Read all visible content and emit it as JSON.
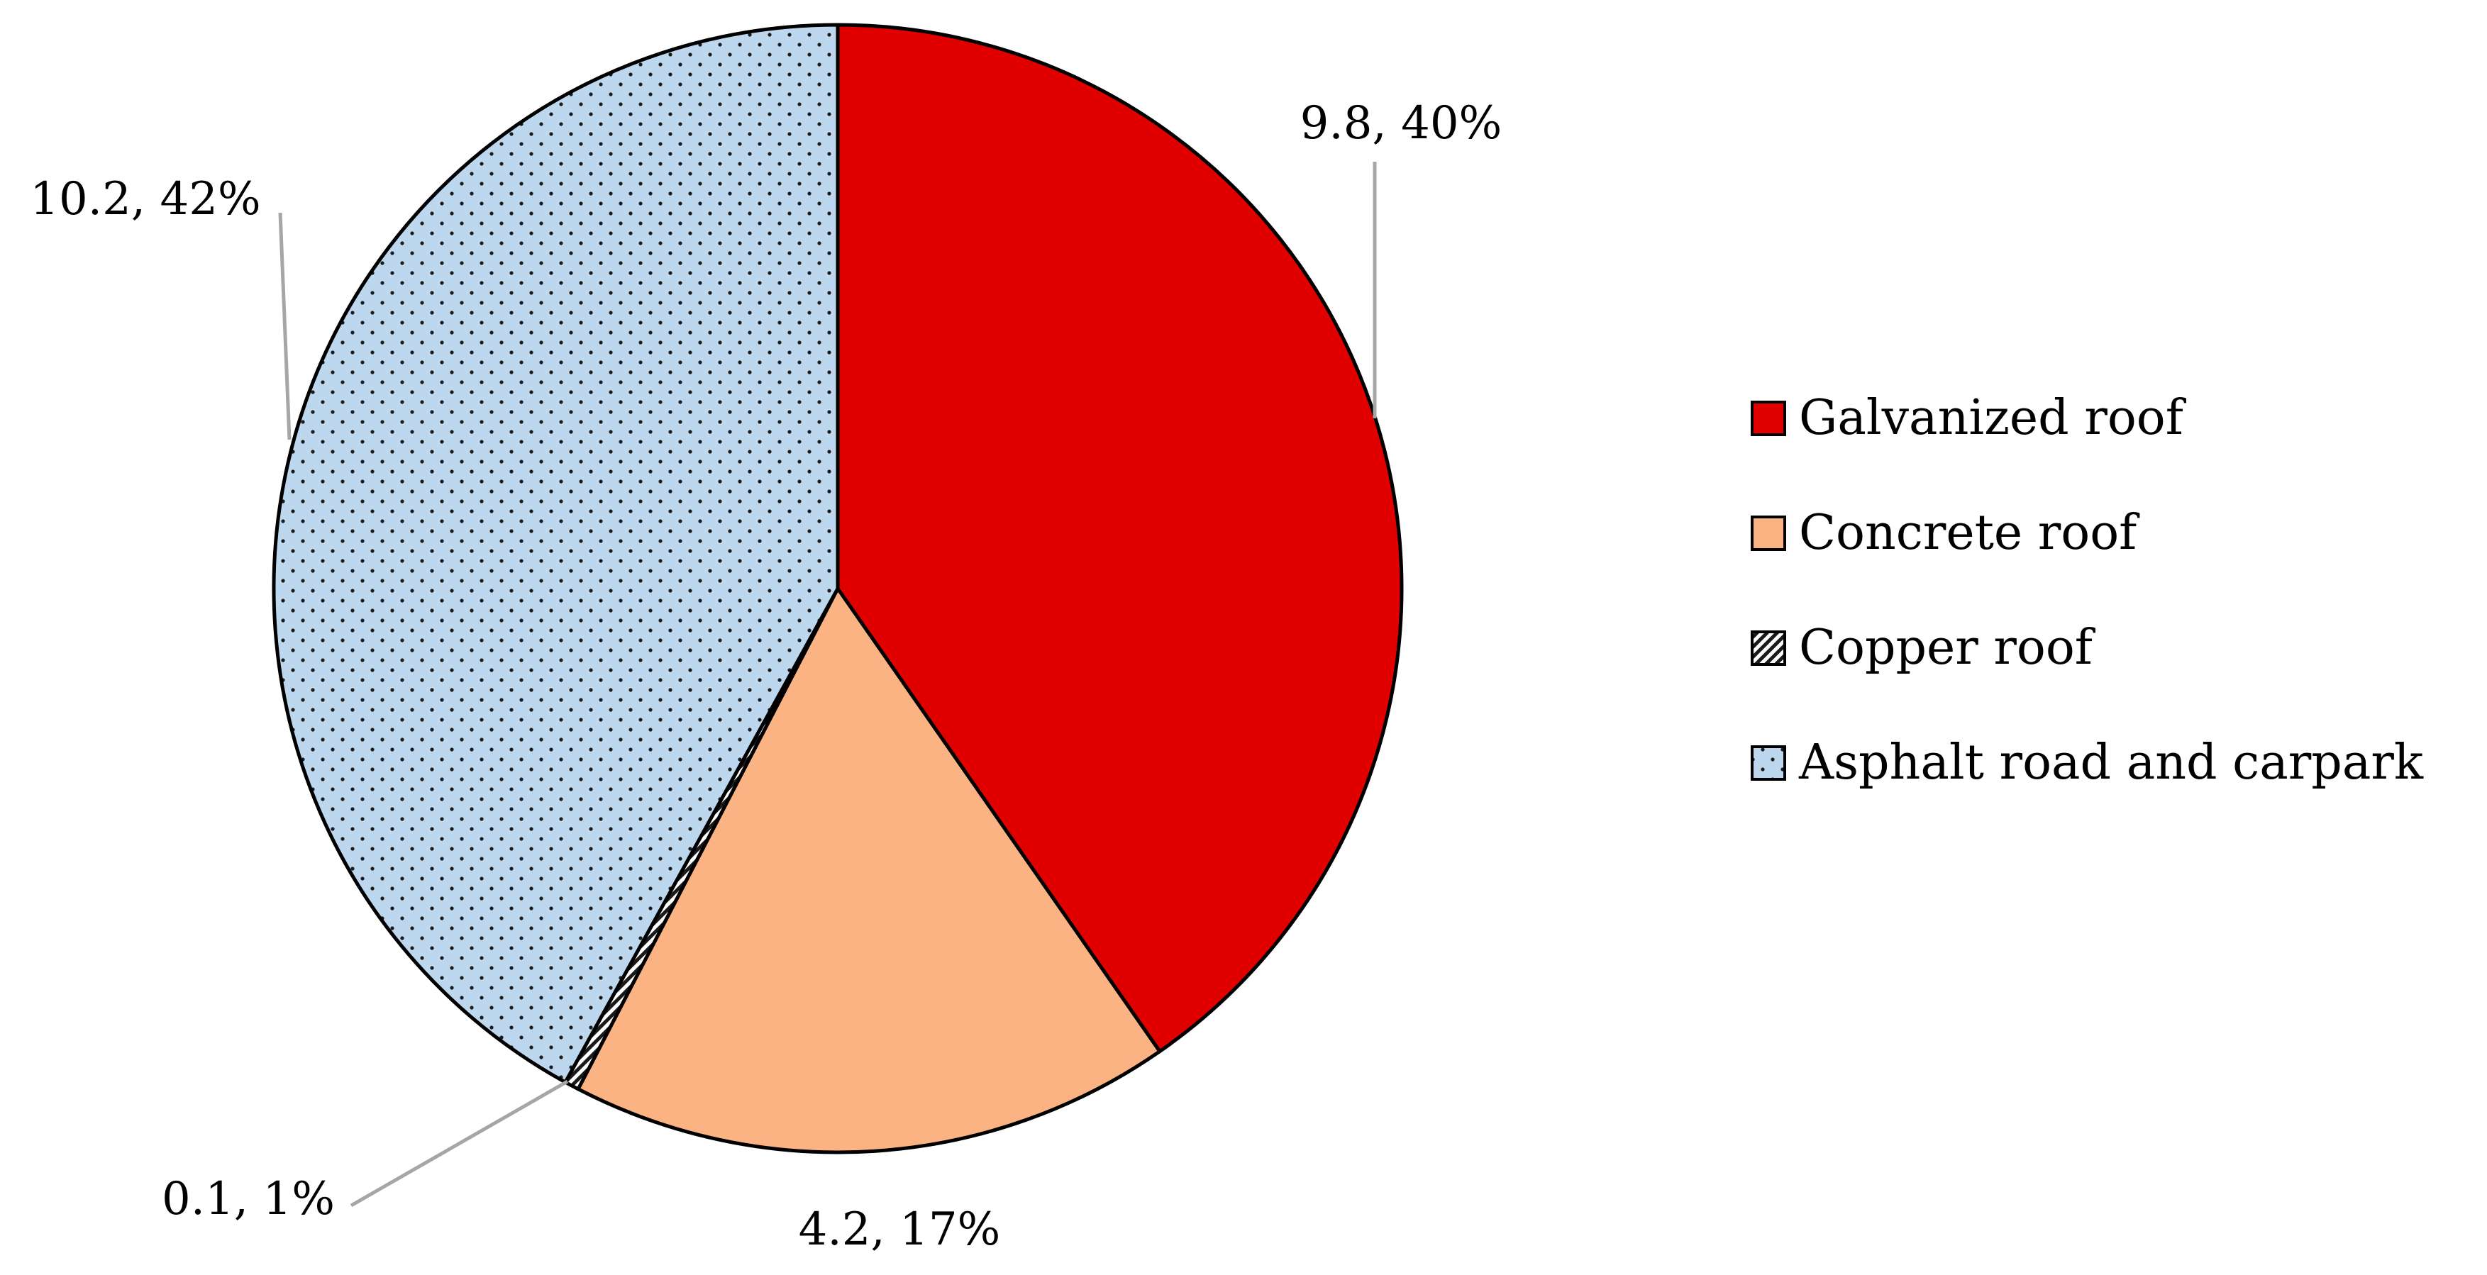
{
  "chart_data": {
    "type": "pie",
    "title": "",
    "legend_position": "right",
    "slices": [
      {
        "label": "Galvanized roof",
        "value": 9.8,
        "percent": 40,
        "data_label": "9.8, 40%",
        "color": "#E00000",
        "pattern": "solid"
      },
      {
        "label": "Concrete roof",
        "value": 4.2,
        "percent": 17,
        "data_label": "4.2, 17%",
        "color": "#FBB383",
        "pattern": "solid"
      },
      {
        "label": "Copper roof",
        "value": 0.1,
        "percent": 1,
        "data_label": "0.1, 1%",
        "color": "#FFFFFF",
        "pattern": "hatched"
      },
      {
        "label": "Asphalt road and carpark",
        "value": 10.2,
        "percent": 42,
        "data_label": "10.2, 42%",
        "color": "#BDD7EE",
        "pattern": "dotted"
      }
    ]
  }
}
